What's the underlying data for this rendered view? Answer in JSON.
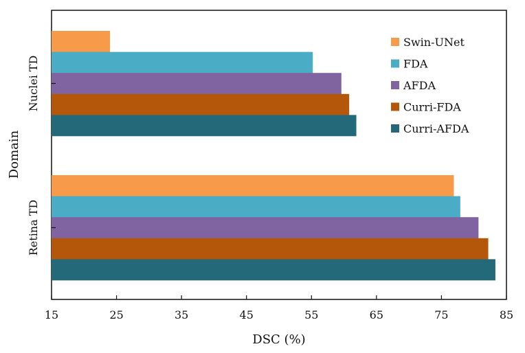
{
  "chart_data": {
    "type": "bar",
    "orientation": "horizontal",
    "title": "",
    "xlabel": "DSC (%)",
    "ylabel": "Domain",
    "xlim": [
      15,
      85
    ],
    "xticks": [
      15,
      25,
      35,
      45,
      55,
      65,
      75,
      85
    ],
    "categories": [
      "Nuclei TD",
      "Retina TD"
    ],
    "series": [
      {
        "name": "Swin-UNet",
        "color": "#F79A4A",
        "values": [
          24.0,
          76.9
        ]
      },
      {
        "name": "FDA",
        "color": "#4BACC6",
        "values": [
          55.2,
          77.9
        ]
      },
      {
        "name": "AFDA",
        "color": "#8064A2",
        "values": [
          59.6,
          80.7
        ]
      },
      {
        "name": "Curri-FDA",
        "color": "#B5570A",
        "values": [
          60.8,
          82.2
        ]
      },
      {
        "name": "Curri-AFDA",
        "color": "#23697A",
        "values": [
          61.9,
          83.3
        ]
      }
    ],
    "grid": false,
    "legend_position": "top-right"
  }
}
